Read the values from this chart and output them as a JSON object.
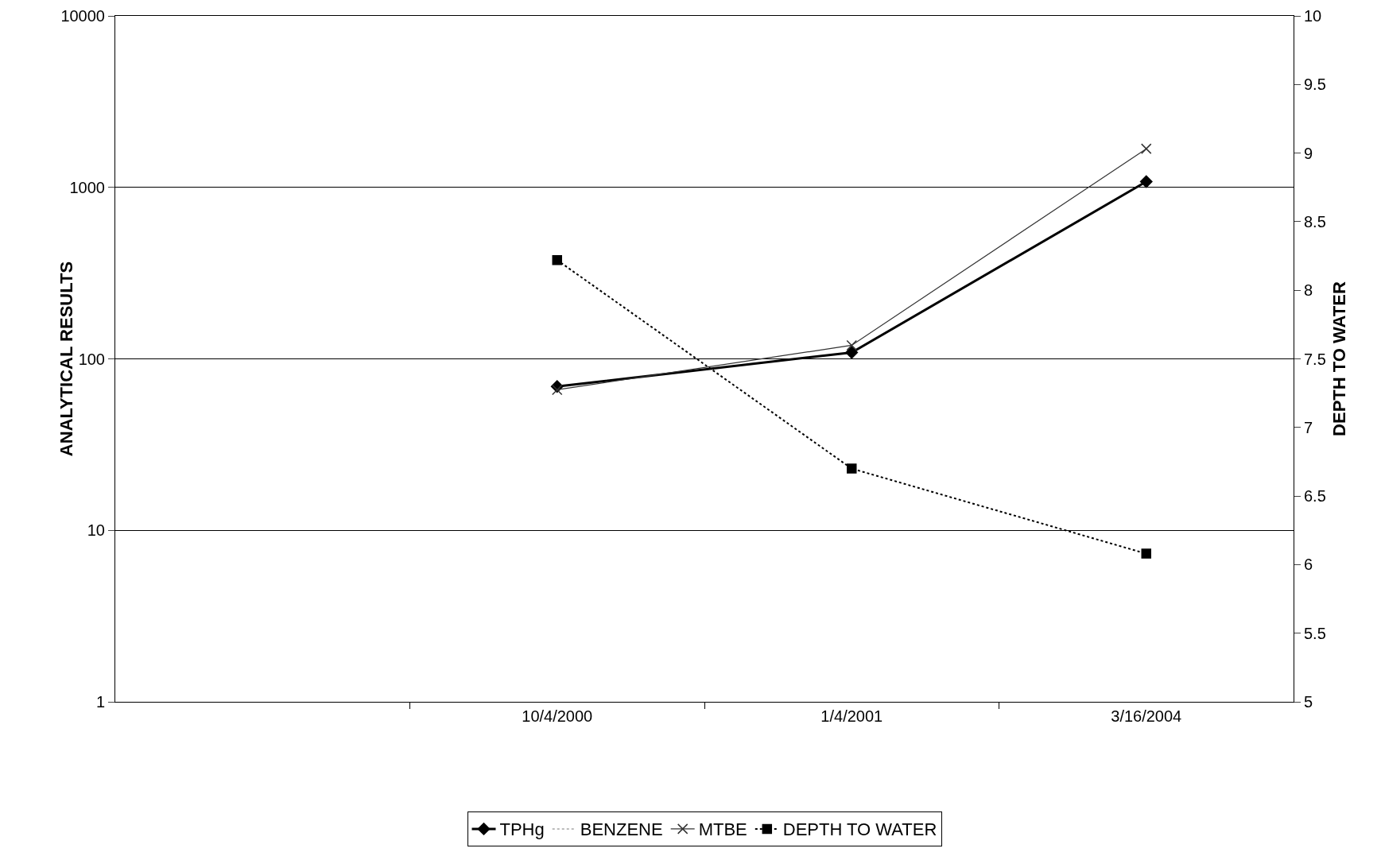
{
  "chart_data": {
    "type": "line",
    "ylabel": "ANALYTICAL RESULTS",
    "y2label": "DEPTH TO WATER",
    "categories": [
      null,
      "10/4/2000",
      "1/4/2001",
      "3/16/2004"
    ],
    "series": [
      {
        "name": "TPHg",
        "color": "#000000",
        "values": [
          null,
          69,
          109,
          1080
        ],
        "marker": "diamond",
        "line_style": "solid"
      },
      {
        "name": "BENZENE",
        "color": "#bbbbbb",
        "values": [
          null,
          null,
          null,
          null
        ],
        "marker": "none",
        "line_style": "dotted"
      },
      {
        "name": "MTBE",
        "color": "#333333",
        "values": [
          null,
          66,
          120,
          1680
        ],
        "marker": "cross",
        "line_style": "solid"
      },
      {
        "name": "DEPTH TO WATER",
        "color": "#000000",
        "values": [
          null,
          8.22,
          6.7,
          6.08
        ],
        "marker": "square",
        "line_style": "dotted",
        "axis": "y2"
      }
    ],
    "log": "y",
    "ylim": [
      1,
      10000
    ],
    "yticks": [
      1,
      10,
      100,
      1000,
      10000
    ],
    "y2lim": [
      5,
      10
    ],
    "y2ticks": [
      5,
      5.5,
      6,
      6.5,
      7,
      7.5,
      8,
      8.5,
      9,
      9.5,
      10
    ],
    "grid": "y",
    "legend": "bottom"
  }
}
